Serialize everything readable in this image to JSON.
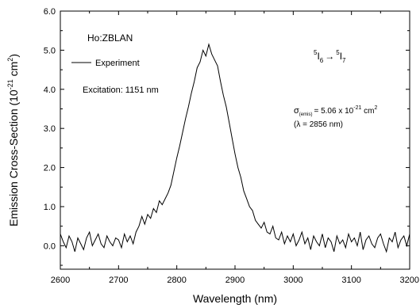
{
  "chart_data": {
    "type": "line",
    "xlabel": "Wavelength (nm)",
    "ylabel_main": "Emission Cross-Section (10",
    "ylabel_exp": "-21",
    "ylabel_mid": " cm",
    "ylabel_exp2": "2",
    "ylabel_end": ")",
    "xlim": [
      2600,
      3200
    ],
    "ylim": [
      -0.6,
      6.0
    ],
    "x_ticks": [
      "2600",
      "2700",
      "2800",
      "2900",
      "3000",
      "3100",
      "3200"
    ],
    "y_ticks": [
      "0.0",
      "1.0",
      "2.0",
      "3.0",
      "4.0",
      "5.0",
      "6.0"
    ],
    "grid": false,
    "legend": {
      "placement": "top-left",
      "entry": "Experiment"
    },
    "annotations": {
      "material": "Ho:ZBLAN",
      "excitation": "Excitation: 1151 nm",
      "transition": {
        "sup1": "5",
        "base1": "I",
        "sub1": "6",
        "arrow": "→",
        "sup2": "5",
        "base2": "I",
        "sub2": "7"
      },
      "sigma": {
        "symbol": "σ",
        "sub": "(emis)",
        "mid": "= 5.06 x 10",
        "exp": "-21",
        "unit": " cm",
        "unit_exp": "2"
      },
      "lambda": "(λ = 2856 nm)"
    },
    "series": [
      {
        "x": [
          2600,
          2605,
          2610,
          2615,
          2620,
          2625,
          2630,
          2635,
          2640,
          2645,
          2650,
          2655,
          2660,
          2665,
          2670,
          2675,
          2680,
          2685,
          2690,
          2695,
          2700,
          2705,
          2710,
          2715,
          2720,
          2725,
          2730,
          2735,
          2740,
          2745,
          2750,
          2755,
          2760,
          2765,
          2770,
          2775,
          2780,
          2785,
          2790,
          2795,
          2800,
          2805,
          2810,
          2815,
          2820,
          2825,
          2830,
          2835,
          2840,
          2845,
          2850,
          2855,
          2860,
          2865,
          2870,
          2875,
          2880,
          2885,
          2890,
          2895,
          2900,
          2905,
          2910,
          2915,
          2920,
          2925,
          2930,
          2935,
          2940,
          2945,
          2950,
          2955,
          2960,
          2965,
          2970,
          2975,
          2980,
          2985,
          2990,
          2995,
          3000,
          3005,
          3010,
          3015,
          3020,
          3025,
          3030,
          3035,
          3040,
          3045,
          3050,
          3055,
          3060,
          3065,
          3070,
          3075,
          3080,
          3085,
          3090,
          3095,
          3100,
          3105,
          3110,
          3115,
          3120,
          3125,
          3130,
          3135,
          3140,
          3145,
          3150,
          3155,
          3160,
          3165,
          3170,
          3175,
          3180,
          3185,
          3190,
          3195,
          3200
        ],
        "y": [
          0.3,
          0.1,
          -0.05,
          0.25,
          0.1,
          -0.15,
          0.2,
          0.05,
          -0.1,
          0.2,
          0.35,
          0.0,
          0.15,
          0.3,
          0.05,
          -0.05,
          0.25,
          0.1,
          0.0,
          0.2,
          0.15,
          -0.05,
          0.3,
          0.1,
          0.25,
          0.05,
          0.35,
          0.5,
          0.75,
          0.55,
          0.8,
          0.7,
          0.95,
          0.85,
          1.15,
          1.05,
          1.2,
          1.35,
          1.55,
          1.9,
          2.25,
          2.55,
          2.9,
          3.25,
          3.55,
          3.9,
          4.2,
          4.55,
          4.7,
          5.0,
          4.85,
          5.15,
          4.9,
          4.75,
          4.6,
          4.2,
          3.85,
          3.55,
          3.15,
          2.75,
          2.35,
          2.0,
          1.75,
          1.4,
          1.2,
          1.0,
          0.9,
          0.65,
          0.55,
          0.45,
          0.6,
          0.35,
          0.3,
          0.5,
          0.2,
          0.15,
          0.35,
          0.05,
          0.25,
          0.1,
          0.3,
          0.0,
          0.15,
          0.35,
          0.05,
          0.2,
          -0.1,
          0.25,
          0.1,
          0.0,
          0.3,
          -0.05,
          0.2,
          0.1,
          -0.15,
          0.25,
          0.05,
          0.15,
          -0.05,
          0.3,
          0.1,
          0.2,
          0.0,
          0.35,
          -0.1,
          0.15,
          0.25,
          0.05,
          -0.05,
          0.2,
          0.3,
          0.05,
          -0.15,
          0.2,
          0.1,
          0.35,
          -0.05,
          0.15,
          0.25,
          0.0,
          0.3
        ]
      }
    ]
  }
}
